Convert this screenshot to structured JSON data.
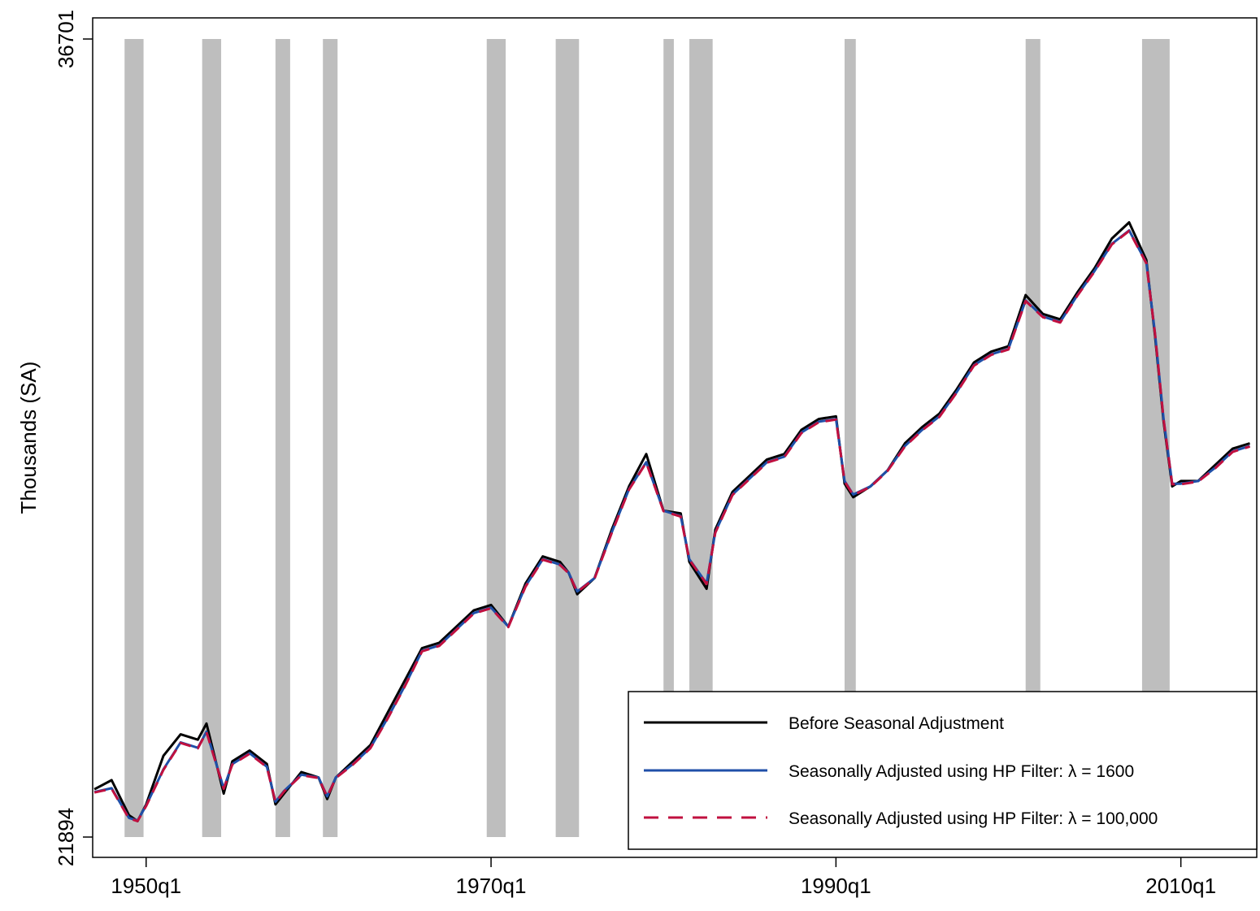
{
  "chart_data": {
    "type": "line",
    "title": "",
    "xlabel": "",
    "ylabel": "Thousands (SA)",
    "ylim": [
      21894,
      36701
    ],
    "xlim": [
      1946.9,
      2014.4
    ],
    "x_ticks": [
      {
        "value": 1950,
        "label": "1950q1"
      },
      {
        "value": 1970,
        "label": "1970q1"
      },
      {
        "value": 1990,
        "label": "1990q1"
      },
      {
        "value": 2010,
        "label": "2010q1"
      }
    ],
    "y_ticks": [
      {
        "value": 21894,
        "label": "21894"
      },
      {
        "value": 36701,
        "label": "36701"
      }
    ],
    "recessions": [
      [
        1948.75,
        1949.85
      ],
      [
        1953.25,
        1954.35
      ],
      [
        1957.5,
        1958.35
      ],
      [
        1960.25,
        1961.1
      ],
      [
        1969.75,
        1970.85
      ],
      [
        1973.75,
        1975.1
      ],
      [
        1980.0,
        1980.6
      ],
      [
        1981.5,
        1982.85
      ],
      [
        1990.5,
        1991.15
      ],
      [
        2001.0,
        2001.85
      ],
      [
        2007.75,
        2009.35
      ]
    ],
    "legend": {
      "position": "bottom-right",
      "entries": [
        "Before Seasonal Adjustment",
        "Seasonally Adjusted using HP Filter: λ = 1600",
        "Seasonally Adjusted using HP Filter: λ = 100,000"
      ]
    },
    "colors": {
      "before": "#000000",
      "hp1600": "#1f4fa8",
      "hp100000": "#c0103f",
      "recession": "#bebebe"
    },
    "x": [
      1947.0,
      1948.0,
      1949.0,
      1949.5,
      1950.0,
      1951.0,
      1952.0,
      1953.0,
      1953.5,
      1954.5,
      1955.0,
      1956.0,
      1957.0,
      1957.5,
      1958.0,
      1959.0,
      1960.0,
      1960.5,
      1961.0,
      1962.0,
      1963.0,
      1964.0,
      1965.0,
      1966.0,
      1967.0,
      1968.0,
      1969.0,
      1970.0,
      1971.0,
      1972.0,
      1973.0,
      1974.0,
      1974.5,
      1975.0,
      1976.0,
      1977.0,
      1978.0,
      1979.0,
      1980.0,
      1981.0,
      1981.5,
      1982.5,
      1983.0,
      1984.0,
      1985.0,
      1986.0,
      1987.0,
      1988.0,
      1989.0,
      1990.0,
      1990.5,
      1991.0,
      1992.0,
      1993.0,
      1994.0,
      1995.0,
      1996.0,
      1997.0,
      1998.0,
      1999.0,
      2000.0,
      2001.0,
      2002.0,
      2003.0,
      2004.0,
      2005.0,
      2006.0,
      2007.0,
      2008.0,
      2008.5,
      2009.0,
      2009.5,
      2010.0,
      2011.0,
      2012.0,
      2013.0,
      2014.0
    ],
    "series": [
      {
        "name": "Before Seasonal Adjustment",
        "values": [
          22780,
          22950,
          22300,
          22190,
          22500,
          23400,
          23800,
          23700,
          24000,
          22700,
          23300,
          23500,
          23250,
          22500,
          22700,
          23100,
          23000,
          22600,
          23000,
          23300,
          23600,
          24200,
          24800,
          25400,
          25500,
          25800,
          26100,
          26200,
          25800,
          26600,
          27100,
          27000,
          26800,
          26400,
          26700,
          27600,
          28400,
          29000,
          27950,
          27900,
          27000,
          26500,
          27600,
          28300,
          28600,
          28900,
          29000,
          29450,
          29650,
          29700,
          28450,
          28200,
          28400,
          28700,
          29200,
          29500,
          29750,
          30200,
          30700,
          30900,
          31000,
          31950,
          31600,
          31500,
          32000,
          32450,
          33000,
          33300,
          32600,
          31200,
          29600,
          28400,
          28500,
          28500,
          28800,
          29100,
          29200
        ]
      },
      {
        "name": "Seasonally Adjusted using HP Filter: λ = 1600",
        "values": [
          22730,
          22800,
          22250,
          22200,
          22480,
          23150,
          23650,
          23550,
          23850,
          22800,
          23250,
          23450,
          23200,
          22550,
          22750,
          23050,
          23000,
          22650,
          23000,
          23250,
          23550,
          24100,
          24700,
          25350,
          25450,
          25750,
          26050,
          26150,
          25800,
          26550,
          27050,
          26950,
          26800,
          26450,
          26700,
          27550,
          28350,
          28850,
          27950,
          27850,
          27050,
          26600,
          27550,
          28250,
          28550,
          28850,
          28950,
          29400,
          29600,
          29650,
          28500,
          28250,
          28400,
          28700,
          29150,
          29450,
          29700,
          30150,
          30650,
          30850,
          30950,
          31850,
          31550,
          31450,
          31950,
          32400,
          32900,
          33150,
          32550,
          31250,
          29650,
          28450,
          28450,
          28500,
          28750,
          29050,
          29150
        ]
      },
      {
        "name": "Seasonally Adjusted using HP Filter: λ = 100,000",
        "values": [
          22720,
          22790,
          22240,
          22190,
          22470,
          23140,
          23640,
          23540,
          23840,
          22790,
          23240,
          23440,
          23190,
          22540,
          22740,
          23040,
          22990,
          22640,
          22990,
          23240,
          23540,
          24090,
          24690,
          25340,
          25440,
          25740,
          26040,
          26140,
          25790,
          26540,
          27040,
          26940,
          26790,
          26440,
          26690,
          27540,
          28340,
          28840,
          27940,
          27840,
          27040,
          26590,
          27540,
          28240,
          28540,
          28840,
          28940,
          29390,
          29590,
          29640,
          28490,
          28240,
          28390,
          28690,
          29140,
          29440,
          29690,
          30140,
          30640,
          30840,
          30940,
          31840,
          31540,
          31440,
          31940,
          32390,
          32890,
          33140,
          32540,
          31240,
          29640,
          28440,
          28440,
          28490,
          28740,
          29040,
          29140
        ]
      }
    ]
  }
}
